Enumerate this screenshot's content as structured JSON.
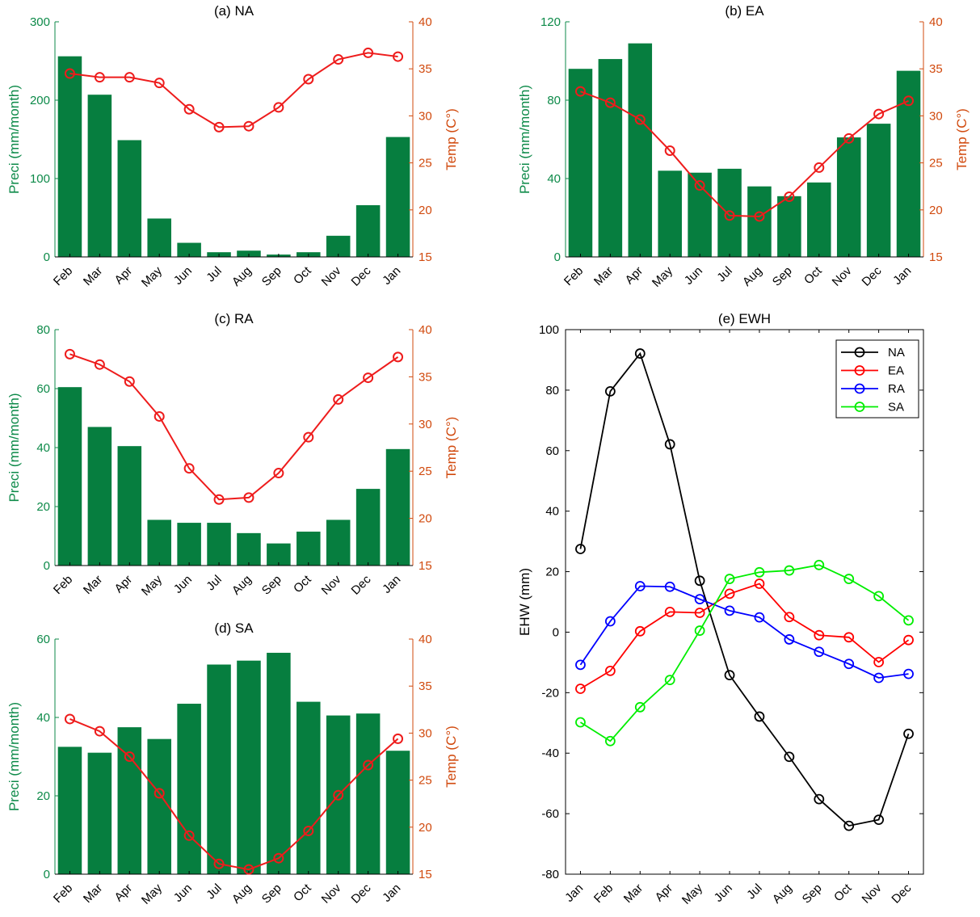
{
  "colors": {
    "bar": "#067e3f",
    "precip_axis": "#0d8a49",
    "temp_axis": "#d14a0e",
    "temp_line": "#ee1c1c",
    "NA": "#000000",
    "EA": "#ff0000",
    "RA": "#0000ff",
    "SA": "#00ee00"
  },
  "chart_data": [
    {
      "type": "bar",
      "title": "(a) NA",
      "categories": [
        "Feb",
        "Mar",
        "Apr",
        "May",
        "Jun",
        "Jul",
        "Aug",
        "Sep",
        "Oct",
        "Nov",
        "Dec",
        "Jan"
      ],
      "series": [
        {
          "name": "Preci",
          "axis": "left",
          "values": [
            256,
            207,
            149,
            49,
            18,
            6,
            8,
            3,
            6,
            27,
            66,
            153
          ]
        },
        {
          "name": "Temp",
          "axis": "right",
          "type": "line",
          "values": [
            34.5,
            34.1,
            34.1,
            33.5,
            30.7,
            28.8,
            28.9,
            30.9,
            33.9,
            36.0,
            36.7,
            36.3
          ]
        }
      ],
      "ylabel": "Preci (mm/month)",
      "ylim": [
        0,
        300
      ],
      "yticks": [
        "0",
        "100",
        "200",
        "300"
      ],
      "y2label": "Temp (C°)",
      "y2lim": [
        15,
        40
      ],
      "y2ticks": [
        "15",
        "20",
        "25",
        "30",
        "35",
        "40"
      ]
    },
    {
      "type": "bar",
      "title": "(b) EA",
      "categories": [
        "Feb",
        "Mar",
        "Apr",
        "May",
        "Jun",
        "Jul",
        "Aug",
        "Sep",
        "Oct",
        "Nov",
        "Dec",
        "Jan"
      ],
      "series": [
        {
          "name": "Preci",
          "axis": "left",
          "values": [
            96,
            101,
            109,
            44,
            43,
            45,
            36,
            31,
            38,
            61,
            68,
            95
          ]
        },
        {
          "name": "Temp",
          "axis": "right",
          "type": "line",
          "values": [
            32.6,
            31.4,
            29.6,
            26.3,
            22.6,
            19.4,
            19.3,
            21.4,
            24.5,
            27.6,
            30.2,
            31.6
          ]
        }
      ],
      "ylabel": "Preci (mm/month)",
      "ylim": [
        0,
        120
      ],
      "yticks": [
        "0",
        "40",
        "80",
        "120"
      ],
      "y2label": "Temp (C°)",
      "y2lim": [
        15,
        40
      ],
      "y2ticks": [
        "15",
        "20",
        "25",
        "30",
        "35",
        "40"
      ]
    },
    {
      "type": "bar",
      "title": "(c) RA",
      "categories": [
        "Feb",
        "Mar",
        "Apr",
        "May",
        "Jun",
        "Jul",
        "Aug",
        "Sep",
        "Oct",
        "Nov",
        "Dec",
        "Jan"
      ],
      "series": [
        {
          "name": "Preci",
          "axis": "left",
          "values": [
            60.5,
            47,
            40.5,
            15.5,
            14.5,
            14.5,
            11,
            7.5,
            11.5,
            15.5,
            26,
            39.5
          ]
        },
        {
          "name": "Temp",
          "axis": "right",
          "type": "line",
          "values": [
            37.4,
            36.3,
            34.5,
            30.8,
            25.3,
            22.0,
            22.2,
            24.8,
            28.6,
            32.6,
            34.9,
            37.1
          ]
        }
      ],
      "ylabel": "Preci (mm/month)",
      "ylim": [
        0,
        80
      ],
      "yticks": [
        "0",
        "20",
        "40",
        "60",
        "80"
      ],
      "y2label": "Temp (C°)",
      "y2lim": [
        15,
        40
      ],
      "y2ticks": [
        "15",
        "20",
        "25",
        "30",
        "35",
        "40"
      ]
    },
    {
      "type": "bar",
      "title": "(d) SA",
      "categories": [
        "Feb",
        "Mar",
        "Apr",
        "May",
        "Jun",
        "Jul",
        "Aug",
        "Sep",
        "Oct",
        "Nov",
        "Dec",
        "Jan"
      ],
      "series": [
        {
          "name": "Preci",
          "axis": "left",
          "values": [
            32.5,
            31,
            37.5,
            34.5,
            43.5,
            53.5,
            54.5,
            56.5,
            44,
            40.5,
            41,
            31.5
          ]
        },
        {
          "name": "Temp",
          "axis": "right",
          "type": "line",
          "values": [
            31.5,
            30.2,
            27.5,
            23.6,
            19.1,
            16.1,
            15.5,
            16.7,
            19.6,
            23.4,
            26.6,
            29.4
          ]
        }
      ],
      "ylabel": "Preci (mm/month)",
      "ylim": [
        0,
        60
      ],
      "yticks": [
        "0",
        "20",
        "40",
        "60"
      ],
      "y2label": "Temp (C°)",
      "y2lim": [
        15,
        40
      ],
      "y2ticks": [
        "15",
        "20",
        "25",
        "30",
        "35",
        "40"
      ]
    },
    {
      "type": "line",
      "title": "(e) EWH",
      "categories": [
        "Jan",
        "Feb",
        "Mar",
        "Apr",
        "May",
        "Jun",
        "Jul",
        "Aug",
        "Sep",
        "Oct",
        "Nov",
        "Dec"
      ],
      "series": [
        {
          "name": "NA",
          "values": [
            27.5,
            79.6,
            92.1,
            62.1,
            17.0,
            -14.2,
            -27.9,
            -41.2,
            -55.2,
            -64.0,
            -62.0,
            -33.6
          ]
        },
        {
          "name": "EA",
          "values": [
            -18.7,
            -12.8,
            0.3,
            6.7,
            6.4,
            12.7,
            16.0,
            5.0,
            -1.0,
            -1.7,
            -9.9,
            -2.6
          ]
        },
        {
          "name": "RA",
          "values": [
            -10.8,
            3.6,
            15.2,
            15.0,
            10.9,
            7.1,
            4.9,
            -2.4,
            -6.5,
            -10.5,
            -15.1,
            -13.8
          ]
        },
        {
          "name": "SA",
          "values": [
            -29.8,
            -36.0,
            -24.8,
            -15.8,
            0.5,
            17.6,
            19.8,
            20.4,
            22.2,
            17.6,
            11.9,
            3.9
          ]
        }
      ],
      "ylabel": "EHW (mm)",
      "ylim": [
        -80,
        100
      ],
      "yticks": [
        "-80",
        "-60",
        "-40",
        "-20",
        "0",
        "20",
        "40",
        "60",
        "80",
        "100"
      ],
      "legend": "top-right"
    }
  ]
}
